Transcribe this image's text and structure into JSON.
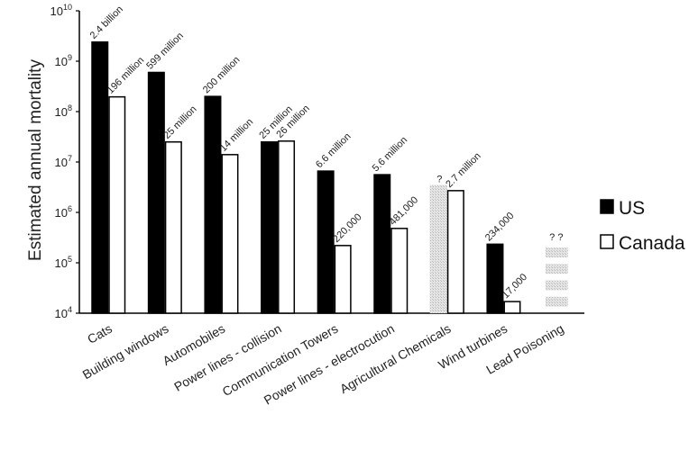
{
  "chart_data": {
    "type": "bar",
    "title": "",
    "xlabel": "",
    "ylabel": "Estimated annual mortality",
    "yscale": "log",
    "ylim": [
      10000,
      10000000000
    ],
    "yticks": [
      {
        "value": 10000,
        "base": "10",
        "exp": "4"
      },
      {
        "value": 100000,
        "base": "10",
        "exp": "5"
      },
      {
        "value": 1000000,
        "base": "10",
        "exp": "6"
      },
      {
        "value": 10000000,
        "base": "10",
        "exp": "7"
      },
      {
        "value": 100000000,
        "base": "10",
        "exp": "8"
      },
      {
        "value": 1000000000,
        "base": "10",
        "exp": "9"
      },
      {
        "value": 10000000000,
        "base": "10",
        "exp": "10"
      }
    ],
    "categories": [
      "Cats",
      "Building windows",
      "Automobiles",
      "Power lines - collision",
      "Communication Towers",
      "Power lines - electrocution",
      "Agricultural Chemicals",
      "Wind turbines",
      "Lead Poisoning"
    ],
    "legend_position": "right",
    "series": [
      {
        "name": "US",
        "color": "#000000",
        "values": [
          2400000000,
          599000000,
          200000000,
          25000000,
          6600000,
          5600000,
          null,
          234000,
          null
        ],
        "labels": [
          "2.4 billion",
          "599 million",
          "200 million",
          "25 million",
          "6.6 million",
          "5.6 million",
          "?",
          "234,000",
          "? ?"
        ],
        "uncertain_extent": [
          null,
          null,
          null,
          null,
          null,
          null,
          3500000,
          null,
          200000
        ]
      },
      {
        "name": "Canada",
        "color": "#ffffff",
        "values": [
          196000000,
          25000000,
          14000000,
          26000000,
          220000,
          481000,
          2700000,
          17000,
          null
        ],
        "labels": [
          "196 million",
          "25 million",
          "14 million",
          "26 million",
          "220,000",
          "481,000",
          "2.7 million",
          "17,000",
          ""
        ]
      }
    ]
  }
}
